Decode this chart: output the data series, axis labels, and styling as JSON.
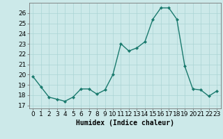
{
  "x": [
    0,
    1,
    2,
    3,
    4,
    5,
    6,
    7,
    8,
    9,
    10,
    11,
    12,
    13,
    14,
    15,
    16,
    17,
    18,
    19,
    20,
    21,
    22,
    23
  ],
  "y": [
    19.8,
    18.8,
    17.8,
    17.6,
    17.4,
    17.8,
    18.6,
    18.6,
    18.1,
    18.5,
    20.0,
    23.0,
    22.3,
    22.6,
    23.2,
    25.4,
    26.5,
    26.5,
    25.4,
    20.8,
    18.6,
    18.5,
    17.9,
    18.4
  ],
  "line_color": "#1a7a6e",
  "marker": "D",
  "marker_size": 2,
  "bg_color": "#cce9e9",
  "grid_color": "#aad4d4",
  "ylabel_ticks": [
    17,
    18,
    19,
    20,
    21,
    22,
    23,
    24,
    25,
    26
  ],
  "ylim": [
    16.7,
    27.0
  ],
  "xlim": [
    -0.5,
    23.5
  ],
  "xlabel": "Humidex (Indice chaleur)",
  "xlabel_fontsize": 7,
  "tick_fontsize": 6.5,
  "linewidth": 1.0
}
